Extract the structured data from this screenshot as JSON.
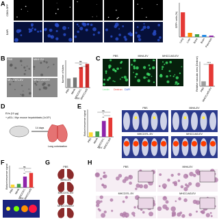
{
  "panels": {
    "A": {
      "letter": "A",
      "image_labels": [
        "CD63-GFP",
        "DAPI"
      ],
      "chart": {
        "ylabel": "GFP+ cells (%)",
        "categories": [
          "Lung",
          "Liver",
          "Bone",
          "Brain",
          "Pancreas"
        ],
        "values": [
          1.8,
          0.3,
          0.2,
          0.15,
          0.1
        ],
        "colors": [
          "#e53935",
          "#fb8c00",
          "#43a047",
          "#1e88e5",
          "#8e24aa"
        ],
        "ylim": [
          0,
          2.5
        ]
      }
    },
    "B": {
      "letter": "B",
      "image_labels": [
        "PBS",
        "MIHA-EV",
        "MHCC97L-EV",
        "MHCCLM3-EV"
      ],
      "chart": {
        "ylabel": "Number of tubes",
        "categories": [
          "PBS",
          "MIHA",
          "MHCC97L",
          "MHCCLM3"
        ],
        "group_label": "EV",
        "values": [
          20,
          22,
          45,
          52
        ],
        "colors": [
          "#9e9e9e",
          "#757575",
          "#e53935",
          "#c62828"
        ],
        "ylim": [
          0,
          60
        ],
        "annotations": [
          "ns",
          "***",
          "****"
        ]
      }
    },
    "C": {
      "letter": "C",
      "image_labels": [
        "PBS",
        "MIHA-EV",
        "MHCCLM3-EV"
      ],
      "stain_labels": [
        "Lectin",
        "Dextran",
        "DAPI"
      ],
      "chart": {
        "ylabel": "Relative vascular area (Dextran)",
        "categories": [
          "PBS",
          "MHCCLM3-EV"
        ],
        "values": [
          1,
          4.5
        ],
        "colors": [
          "#9e9e9e",
          "#e53935"
        ],
        "ylim": [
          0,
          5
        ],
        "annotations": [
          "****"
        ]
      }
    },
    "D": {
      "letter": "D",
      "texts": [
        "EVs (10 µg)",
        "+ p53-/- Myc mouse hepatoblasts (1x10⁵)",
        "14 days",
        "Lung colonization"
      ]
    },
    "E": {
      "letter": "E",
      "image_labels": [
        "PBS",
        "MIHA-EV",
        "MHCC97L-EV",
        "MHCCLM3-EV"
      ],
      "chart": {
        "ylabel": "Bioluminescence signal",
        "categories": [
          "PBS",
          "MIHA",
          "MHCC97L",
          "MHCCLM3"
        ],
        "group_label": "EV",
        "values": [
          1,
          1.2,
          3.5,
          4.2
        ],
        "colors": [
          "#fdd835",
          "#43a047",
          "#8e24aa",
          "#e53935"
        ],
        "ylim": [
          0,
          6
        ],
        "annotations": [
          "ns",
          "*",
          "**"
        ]
      }
    },
    "F": {
      "letter": "F",
      "chart": {
        "ylabel": "Bioluminescence signal",
        "categories": [
          "PBS",
          "MIHA",
          "MHCC97L",
          "MHCCLM3"
        ],
        "group_label": "EV",
        "values": [
          0.8,
          1,
          3,
          4
        ],
        "colors": [
          "#fdd835",
          "#43a047",
          "#8e24aa",
          "#e53935"
        ],
        "ylim": [
          0,
          6
        ],
        "annotations": [
          "ns",
          "*",
          "**"
        ]
      }
    },
    "G": {
      "letter": "G",
      "image_labels": [
        "PBS",
        "MIHA-EV",
        "MHCC97L-EV",
        "MHCCLM3-EV"
      ]
    },
    "H": {
      "letter": "H",
      "image_labels": [
        "PBS",
        "MIHA-EV",
        "MHCC97L-EV",
        "MHCCLM3-EV"
      ]
    }
  }
}
